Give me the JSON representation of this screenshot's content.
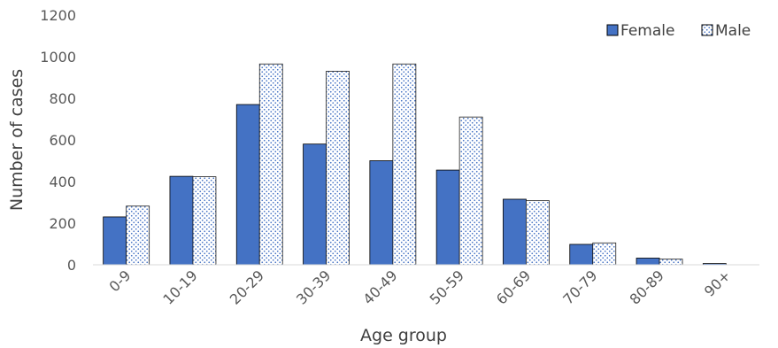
{
  "chart_data": {
    "type": "bar",
    "title": "",
    "xlabel": "Age group",
    "ylabel": "Number of cases",
    "ylim": [
      0,
      1200
    ],
    "yticks": [
      0,
      200,
      400,
      600,
      800,
      1000,
      1200
    ],
    "grid": false,
    "legend_position": "top-right",
    "categories": [
      "0-9",
      "10-19",
      "20-29",
      "30-39",
      "40-49",
      "50-59",
      "60-69",
      "70-79",
      "80-89",
      "90+"
    ],
    "series": [
      {
        "name": "Female",
        "values": [
          230,
          425,
          770,
          580,
          500,
          455,
          315,
          98,
          32,
          6
        ],
        "color": "#4472C4",
        "pattern": "solid"
      },
      {
        "name": "Male",
        "values": [
          282,
          423,
          965,
          930,
          965,
          710,
          308,
          105,
          27,
          0
        ],
        "color": "#4472C4",
        "pattern": "dotted"
      }
    ]
  }
}
